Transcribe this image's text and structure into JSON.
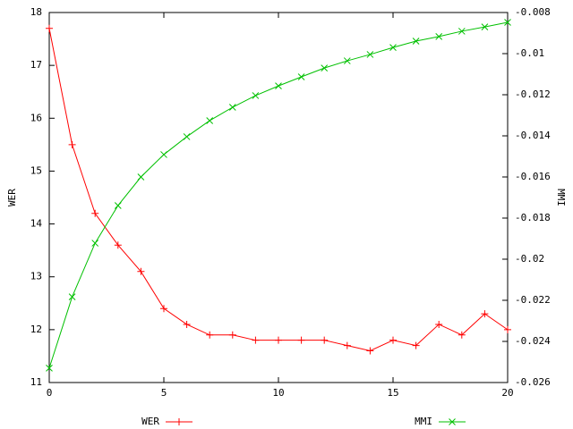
{
  "chart_data": {
    "type": "line",
    "x": [
      0,
      1,
      2,
      3,
      4,
      5,
      6,
      7,
      8,
      9,
      10,
      11,
      12,
      13,
      14,
      15,
      16,
      17,
      18,
      19,
      20
    ],
    "xlim": [
      0,
      20
    ],
    "xticks": [
      0,
      5,
      10,
      15,
      20
    ],
    "ylim": [
      11,
      18
    ],
    "yticks": [
      11,
      12,
      13,
      14,
      15,
      16,
      17,
      18
    ],
    "y2lim": [
      -0.026,
      -0.008
    ],
    "y2ticks": [
      -0.026,
      -0.024,
      -0.022,
      -0.02,
      -0.018,
      -0.016,
      -0.014,
      -0.012,
      -0.01,
      -0.008
    ],
    "ylabel": "WER",
    "y2label": "MMI",
    "legend": "bottom",
    "series": [
      {
        "name": "WER",
        "color": "#ff0000",
        "marker": "plus",
        "values": [
          17.7,
          15.5,
          14.2,
          13.6,
          13.1,
          12.4,
          12.1,
          11.9,
          11.9,
          11.8,
          11.8,
          11.8,
          11.8,
          11.7,
          11.6,
          11.8,
          11.7,
          12.1,
          11.9,
          12.3,
          12.0
        ]
      },
      {
        "name": "MMI",
        "color": "#00c000",
        "marker": "cross",
        "axis": "y2",
        "values": [
          -0.0253,
          -0.02183,
          -0.01922,
          -0.01739,
          -0.016,
          -0.01491,
          -0.01404,
          -0.01326,
          -0.01261,
          -0.01204,
          -0.01157,
          -0.01113,
          -0.0107,
          -0.01035,
          -0.01004,
          -0.0097,
          -0.00939,
          -0.00917,
          -0.00891,
          -0.0087,
          -0.00848
        ]
      }
    ]
  }
}
